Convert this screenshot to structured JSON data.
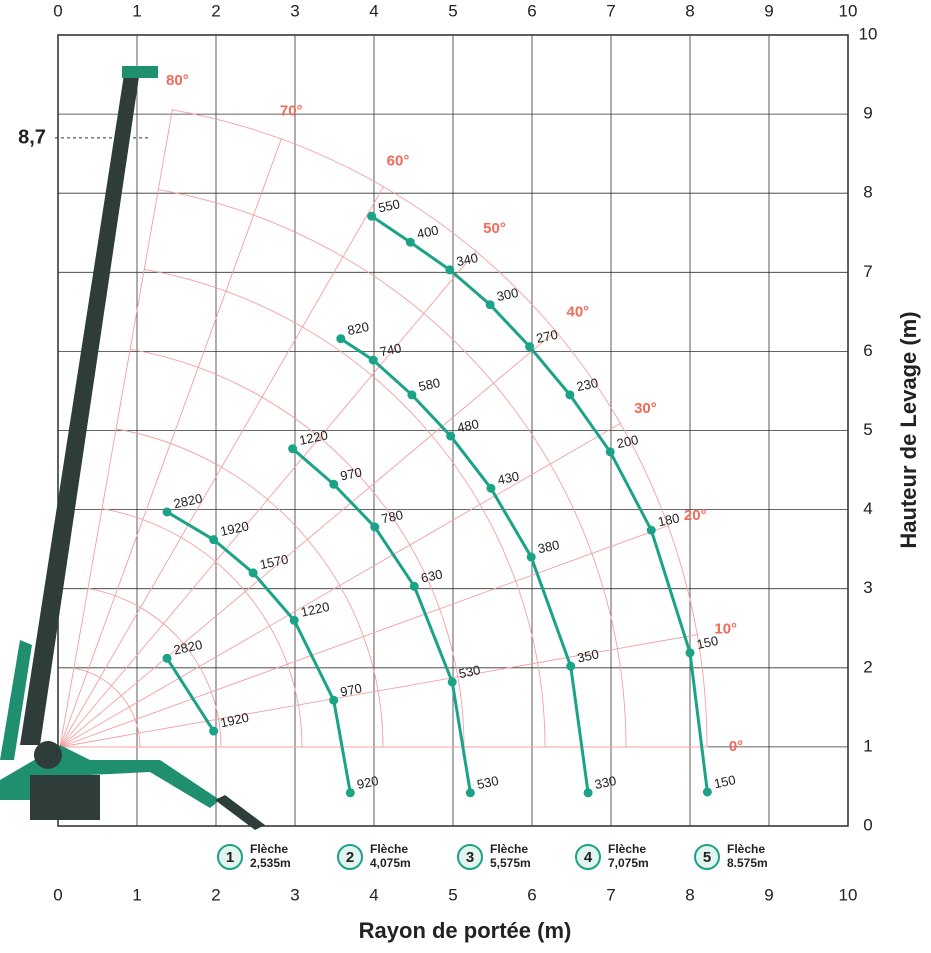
{
  "chart_data": {
    "type": "crane-load-chart",
    "x_label": "Rayon de portée (m)",
    "y_label": "Hauteur de Levage (m)",
    "xlim": [
      0,
      10
    ],
    "ylim": [
      0,
      10
    ],
    "xticks": [
      0,
      1,
      2,
      3,
      4,
      5,
      6,
      7,
      8,
      9,
      10
    ],
    "yticks": [
      0,
      1,
      2,
      3,
      4,
      5,
      6,
      7,
      8,
      9,
      10
    ],
    "grid": true,
    "annotation": {
      "text": "8,7",
      "y": 8.7
    },
    "angle_labels": [
      "0°",
      "10°",
      "20°",
      "30°",
      "40°",
      "50°",
      "60°",
      "70°",
      "80°"
    ],
    "series": [
      {
        "id": "1",
        "name": "Flèche",
        "length": "2,535m",
        "color": "#1aa386",
        "x": [
          1.38,
          1.97
        ],
        "y": [
          2.12,
          1.2
        ],
        "loads": [
          "2820",
          "1920"
        ]
      },
      {
        "id": "2",
        "name": "Flèche",
        "length": "4,075m",
        "color": "#1aa386",
        "x": [
          1.38,
          1.97,
          2.47,
          2.99,
          3.49,
          3.7
        ],
        "y": [
          3.97,
          3.62,
          3.2,
          2.6,
          1.59,
          0.42
        ],
        "loads": [
          "2820",
          "1920",
          "1570",
          "1220",
          "970",
          "920"
        ]
      },
      {
        "id": "3",
        "name": "Flèche",
        "length": "5,575m",
        "color": "#1aa386",
        "x": [
          2.97,
          3.49,
          4.01,
          4.51,
          4.99,
          5.22
        ],
        "y": [
          4.77,
          4.32,
          3.78,
          3.03,
          1.82,
          0.42
        ],
        "loads": [
          "1220",
          "970",
          "780",
          "630",
          "530",
          "530"
        ]
      },
      {
        "id": "4",
        "name": "Flèche",
        "length": "7,075m",
        "color": "#1aa386",
        "x": [
          3.58,
          3.99,
          4.48,
          4.97,
          5.48,
          5.99,
          6.49,
          6.71
        ],
        "y": [
          6.16,
          5.89,
          5.45,
          4.93,
          4.27,
          3.4,
          2.02,
          0.42
        ],
        "loads": [
          "820",
          "740",
          "580",
          "480",
          "430",
          "380",
          "350",
          "330"
        ]
      },
      {
        "id": "5",
        "name": "Flèche",
        "length": "8.575m",
        "color": "#1aa386",
        "x": [
          3.97,
          4.46,
          4.96,
          5.47,
          5.97,
          6.48,
          6.99,
          7.51,
          8.0,
          8.22
        ],
        "y": [
          7.71,
          7.38,
          7.03,
          6.59,
          6.06,
          5.45,
          4.73,
          3.74,
          2.19,
          0.43
        ],
        "loads": [
          "550",
          "400",
          "340",
          "300",
          "270",
          "230",
          "200",
          "180",
          "150",
          "150"
        ]
      }
    ]
  }
}
